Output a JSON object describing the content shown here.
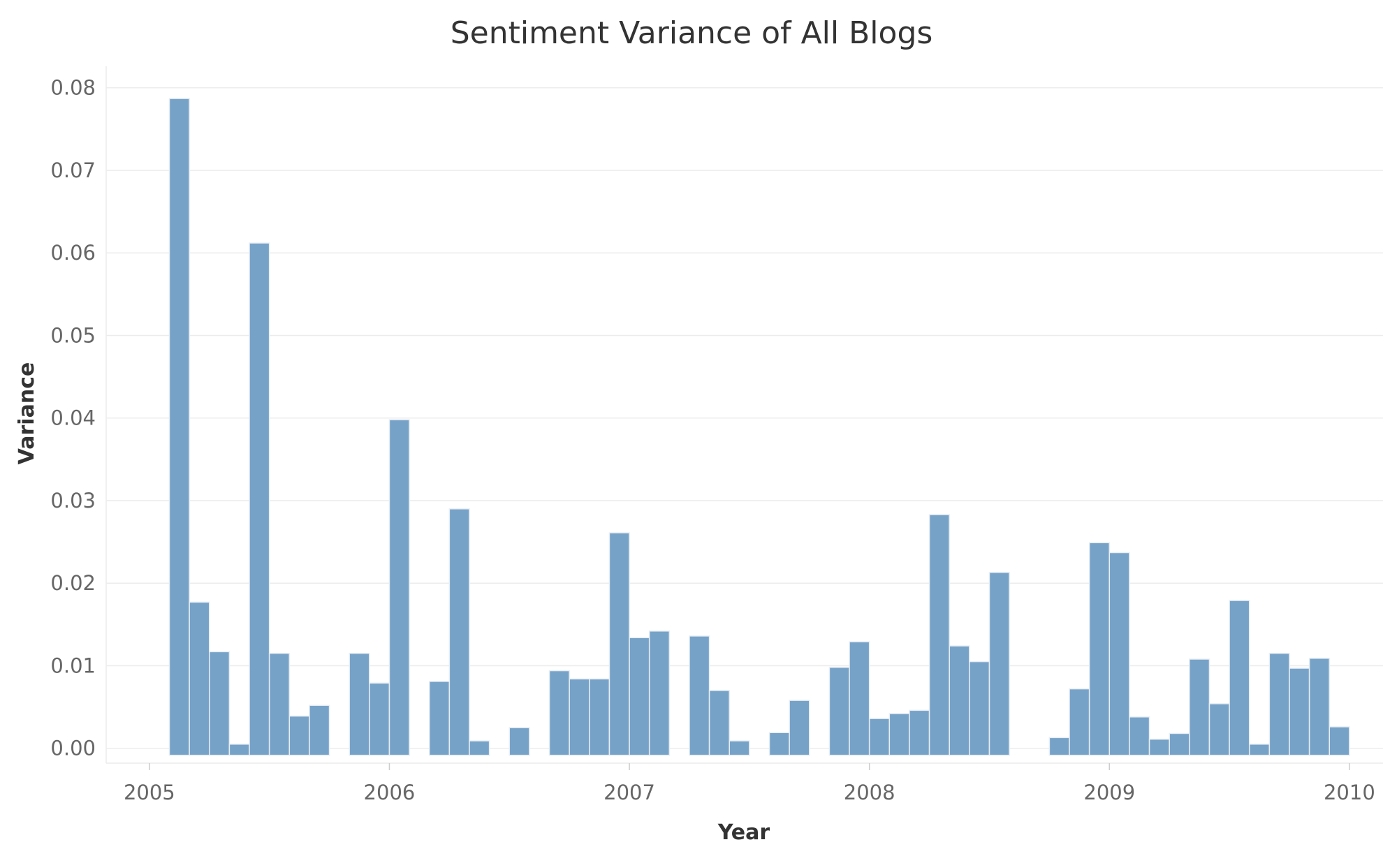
{
  "chart_data": {
    "type": "bar",
    "title": "Sentiment Variance of All Blogs",
    "xlabel": "Year",
    "ylabel": "Variance",
    "bar_color": "#77a2c8",
    "grid": true,
    "xlim": [
      2004.82,
      2010.14
    ],
    "ylim": [
      -0.0018,
      0.0826
    ],
    "x_ticks": [
      "2005",
      "2006",
      "2007",
      "2008",
      "2009",
      "2010"
    ],
    "y_ticks": [
      "0.00",
      "0.01",
      "0.02",
      "0.03",
      "0.04",
      "0.05",
      "0.06",
      "0.07",
      "0.08"
    ],
    "bin_width_years": 0.0833,
    "series": [
      {
        "x": [
          "2005-01",
          "2005-02",
          "2005-03",
          "2005-04",
          "2005-05",
          "2005-06",
          "2005-07",
          "2005-08",
          "2005-09",
          "2005-10",
          "2005-11",
          "2005-12",
          "2006-01",
          "2006-02",
          "2006-03",
          "2006-04",
          "2006-05",
          "2006-06",
          "2006-07",
          "2006-08",
          "2006-09",
          "2006-10",
          "2006-11",
          "2006-12",
          "2007-01",
          "2007-02",
          "2007-03",
          "2007-04",
          "2007-05",
          "2007-06",
          "2007-07",
          "2007-08",
          "2007-09",
          "2007-10",
          "2007-11",
          "2007-12",
          "2008-01",
          "2008-02",
          "2008-03",
          "2008-04",
          "2008-05",
          "2008-06",
          "2008-07",
          "2008-08",
          "2008-09",
          "2008-10",
          "2008-11",
          "2008-12",
          "2009-01",
          "2009-02",
          "2009-03",
          "2009-04",
          "2009-05",
          "2009-06",
          "2009-07",
          "2009-08",
          "2009-09",
          "2009-10",
          "2009-11",
          "2009-12"
        ],
        "values": [
          0.0,
          0.0787,
          0.0177,
          0.0117,
          0.0005,
          0.0612,
          0.0115,
          0.0039,
          0.0052,
          0.0,
          0.0115,
          0.0079,
          0.0398,
          0.0,
          0.0081,
          0.029,
          0.0009,
          0.0,
          0.0025,
          0.0,
          0.0094,
          0.0084,
          0.0084,
          0.0261,
          0.0134,
          0.0142,
          0.0,
          0.0136,
          0.007,
          0.0009,
          0.0,
          0.0019,
          0.0058,
          0.0,
          0.0098,
          0.0129,
          0.0036,
          0.0042,
          0.0046,
          0.0283,
          0.0124,
          0.0105,
          0.0213,
          0.0,
          0.0,
          0.0013,
          0.0072,
          0.0249,
          0.0237,
          0.0038,
          0.0011,
          0.0018,
          0.0108,
          0.0054,
          0.0179,
          0.0005,
          0.0115,
          0.0097,
          0.0109,
          0.0026
        ]
      }
    ]
  }
}
